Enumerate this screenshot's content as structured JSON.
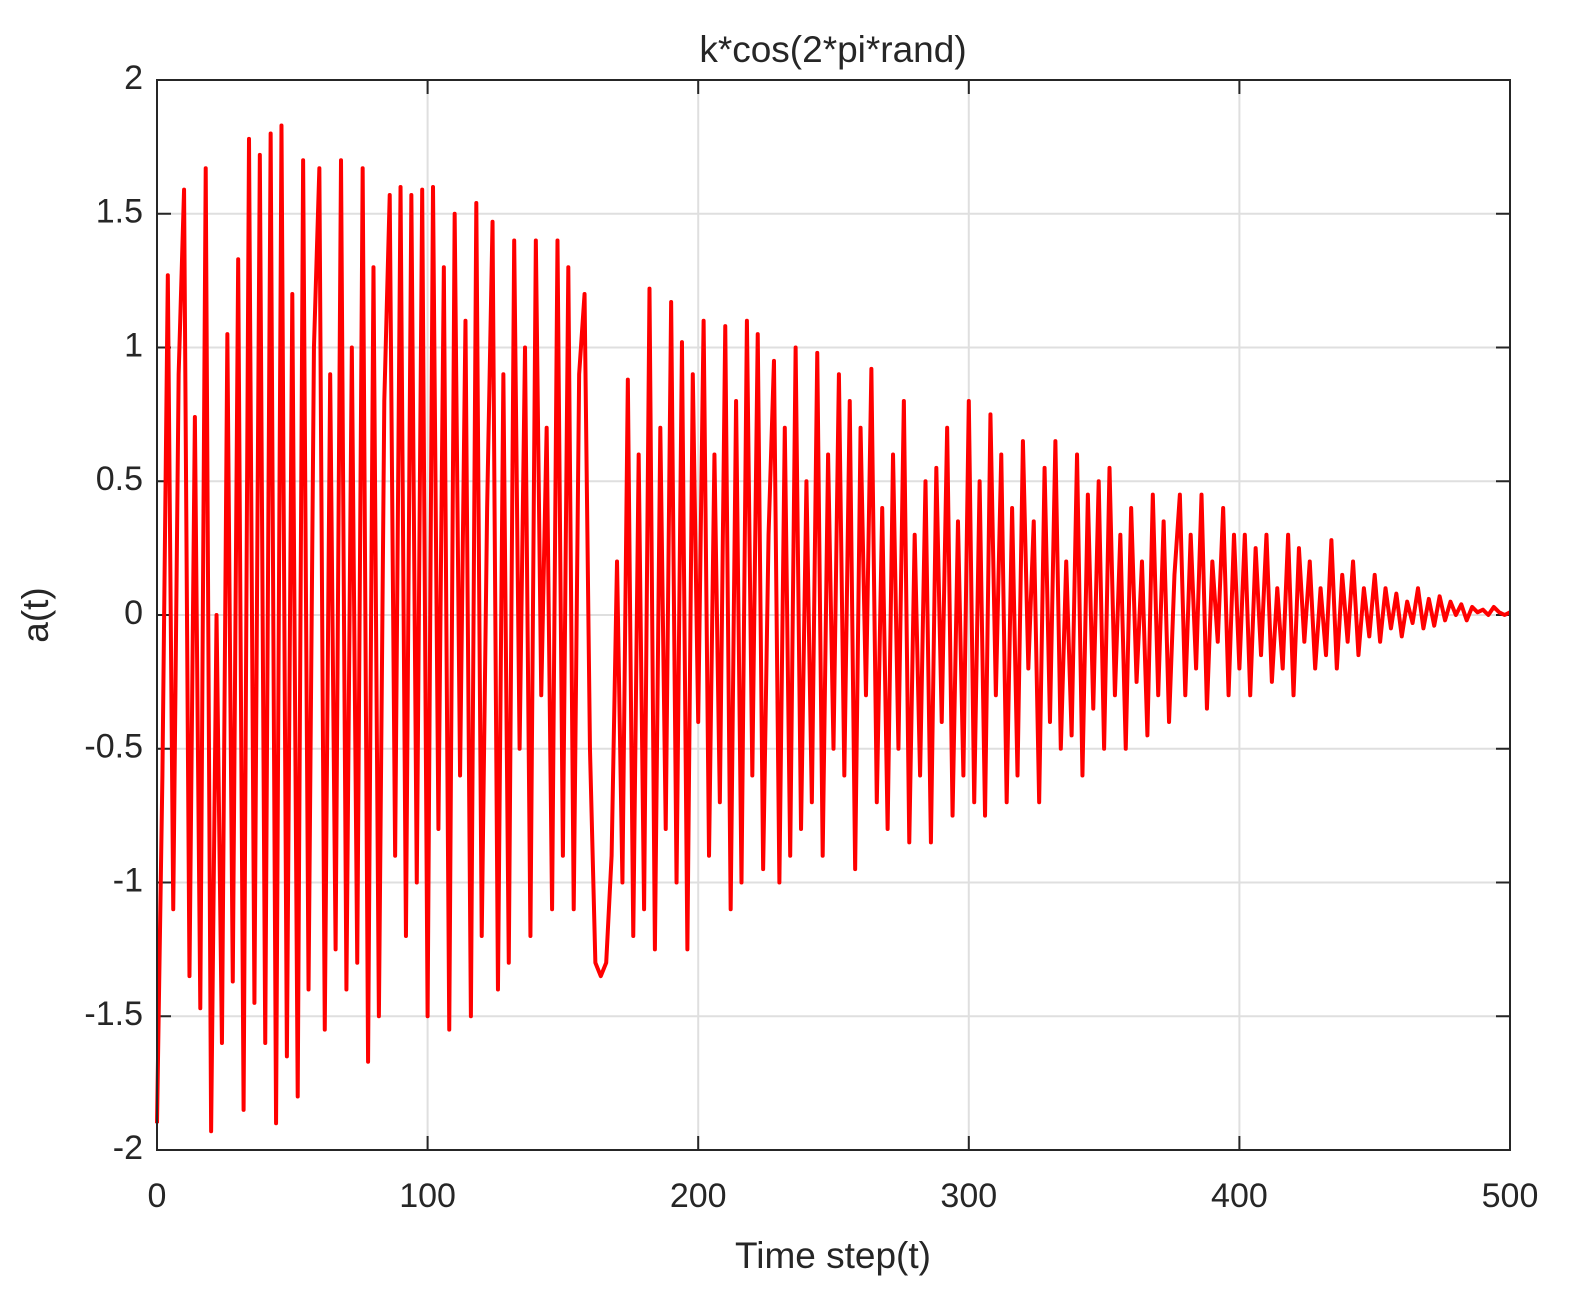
{
  "chart_data": {
    "type": "line",
    "title": "k*cos(2*pi*rand)",
    "x_label": "Time step(t)",
    "y_label": "a(t)",
    "color": "#ff0000",
    "grid": true,
    "xlim": [
      0,
      500
    ],
    "xticks": [
      0,
      100,
      200,
      300,
      400,
      500
    ],
    "ylim": [
      -2,
      2
    ],
    "yticks": [
      -2,
      -1.5,
      -1,
      -0.5,
      0,
      0.5,
      1,
      1.5,
      2
    ],
    "x": [
      0,
      2,
      4,
      6,
      8,
      10,
      12,
      14,
      16,
      18,
      20,
      22,
      24,
      26,
      28,
      30,
      32,
      34,
      36,
      38,
      40,
      42,
      44,
      46,
      48,
      50,
      52,
      54,
      56,
      58,
      60,
      62,
      64,
      66,
      68,
      70,
      72,
      74,
      76,
      78,
      80,
      82,
      84,
      86,
      88,
      90,
      92,
      94,
      96,
      98,
      100,
      102,
      104,
      106,
      108,
      110,
      112,
      114,
      116,
      118,
      120,
      122,
      124,
      126,
      128,
      130,
      132,
      134,
      136,
      138,
      140,
      142,
      144,
      146,
      148,
      150,
      152,
      154,
      156,
      158,
      160,
      162,
      164,
      166,
      168,
      170,
      172,
      174,
      176,
      178,
      180,
      182,
      184,
      186,
      188,
      190,
      192,
      194,
      196,
      198,
      200,
      202,
      204,
      206,
      208,
      210,
      212,
      214,
      216,
      218,
      220,
      222,
      224,
      226,
      228,
      230,
      232,
      234,
      236,
      238,
      240,
      242,
      244,
      246,
      248,
      250,
      252,
      254,
      256,
      258,
      260,
      262,
      264,
      266,
      268,
      270,
      272,
      274,
      276,
      278,
      280,
      282,
      284,
      286,
      288,
      290,
      292,
      294,
      296,
      298,
      300,
      302,
      304,
      306,
      308,
      310,
      312,
      314,
      316,
      318,
      320,
      322,
      324,
      326,
      328,
      330,
      332,
      334,
      336,
      338,
      340,
      342,
      344,
      346,
      348,
      350,
      352,
      354,
      356,
      358,
      360,
      362,
      364,
      366,
      368,
      370,
      372,
      374,
      376,
      378,
      380,
      382,
      384,
      386,
      388,
      390,
      392,
      394,
      396,
      398,
      400,
      402,
      404,
      406,
      408,
      410,
      412,
      414,
      416,
      418,
      420,
      422,
      424,
      426,
      428,
      430,
      432,
      434,
      436,
      438,
      440,
      442,
      444,
      446,
      448,
      450,
      452,
      454,
      456,
      458,
      460,
      462,
      464,
      466,
      468,
      470,
      472,
      474,
      476,
      478,
      480,
      482,
      484,
      486,
      488,
      490,
      492,
      494,
      496,
      498,
      500
    ],
    "values": [
      -1.9,
      -0.6,
      1.27,
      -1.1,
      0.9,
      1.59,
      -1.35,
      0.74,
      -1.47,
      1.67,
      -1.93,
      0.0,
      -1.6,
      1.05,
      -1.37,
      1.33,
      -1.85,
      1.78,
      -1.45,
      1.72,
      -1.6,
      1.8,
      -1.9,
      1.83,
      -1.65,
      1.2,
      -1.8,
      1.7,
      -1.4,
      1.0,
      1.67,
      -1.55,
      0.9,
      -1.25,
      1.7,
      -1.4,
      1.0,
      -1.3,
      1.67,
      -1.67,
      1.3,
      -1.5,
      0.8,
      1.57,
      -0.9,
      1.6,
      -1.2,
      1.57,
      -1.0,
      1.59,
      -1.5,
      1.6,
      -0.8,
      1.3,
      -1.55,
      1.5,
      -0.6,
      1.1,
      -1.5,
      1.54,
      -1.2,
      0.4,
      1.47,
      -1.4,
      0.9,
      -1.3,
      1.4,
      -0.5,
      1.0,
      -1.2,
      1.4,
      -0.3,
      0.7,
      -1.1,
      1.4,
      -0.9,
      1.3,
      -1.1,
      0.9,
      1.2,
      -0.5,
      -1.3,
      -1.35,
      -1.3,
      -0.9,
      0.2,
      -1.0,
      0.88,
      -1.2,
      0.6,
      -1.1,
      1.22,
      -1.25,
      0.7,
      -0.8,
      1.17,
      -1.0,
      1.02,
      -1.25,
      0.9,
      -0.4,
      1.1,
      -0.9,
      0.6,
      -0.7,
      1.08,
      -1.1,
      0.8,
      -1.0,
      1.1,
      -0.6,
      1.05,
      -0.95,
      0.3,
      0.95,
      -1.0,
      0.7,
      -0.9,
      1.0,
      -0.8,
      0.5,
      -0.7,
      0.98,
      -0.9,
      0.6,
      -0.5,
      0.9,
      -0.6,
      0.8,
      -0.95,
      0.7,
      -0.3,
      0.92,
      -0.7,
      0.4,
      -0.8,
      0.6,
      -0.5,
      0.8,
      -0.85,
      0.3,
      -0.6,
      0.5,
      -0.85,
      0.55,
      -0.4,
      0.7,
      -0.75,
      0.35,
      -0.6,
      0.8,
      -0.7,
      0.5,
      -0.75,
      0.75,
      -0.3,
      0.6,
      -0.7,
      0.4,
      -0.6,
      0.65,
      -0.2,
      0.35,
      -0.7,
      0.55,
      -0.4,
      0.65,
      -0.5,
      0.2,
      -0.45,
      0.6,
      -0.6,
      0.45,
      -0.35,
      0.5,
      -0.5,
      0.55,
      -0.3,
      0.3,
      -0.5,
      0.4,
      -0.25,
      0.2,
      -0.45,
      0.45,
      -0.3,
      0.35,
      -0.4,
      0.15,
      0.45,
      -0.3,
      0.3,
      -0.2,
      0.45,
      -0.35,
      0.2,
      -0.1,
      0.4,
      -0.3,
      0.3,
      -0.2,
      0.3,
      -0.3,
      0.25,
      -0.15,
      0.3,
      -0.25,
      0.1,
      -0.2,
      0.3,
      -0.3,
      0.25,
      -0.1,
      0.2,
      -0.2,
      0.1,
      -0.15,
      0.28,
      -0.2,
      0.15,
      -0.1,
      0.2,
      -0.15,
      0.1,
      -0.08,
      0.15,
      -0.1,
      0.1,
      -0.05,
      0.08,
      -0.08,
      0.05,
      -0.03,
      0.1,
      -0.05,
      0.06,
      -0.04,
      0.07,
      -0.02,
      0.05,
      0.0,
      0.04,
      -0.02,
      0.03,
      0.01,
      0.02,
      0.0,
      0.03,
      0.01,
      0.0,
      0.01
    ]
  }
}
